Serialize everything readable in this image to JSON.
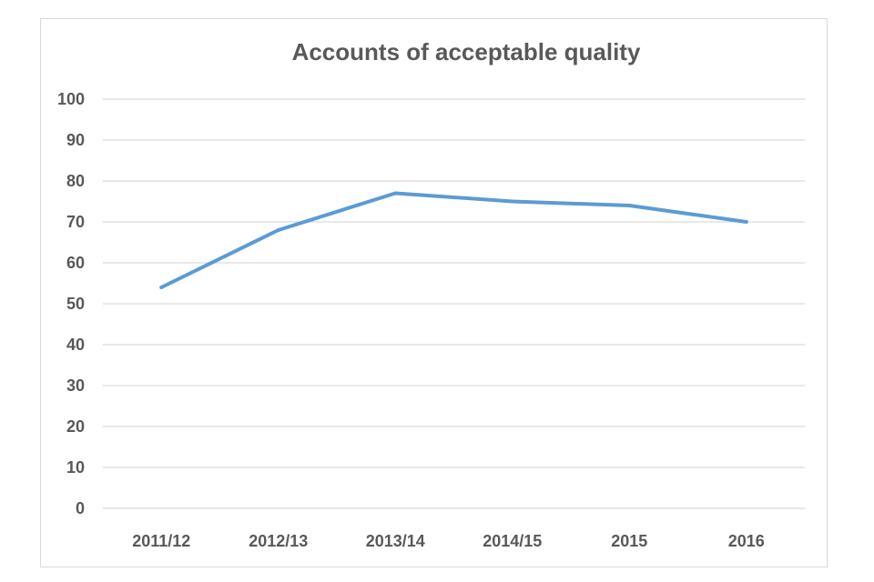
{
  "chart_data": {
    "type": "line",
    "title": "Accounts of acceptable quality",
    "xlabel": "",
    "ylabel": "",
    "categories": [
      "2011/12",
      "2012/13",
      "2013/14",
      "2014/15",
      "2015",
      "2016"
    ],
    "series": [
      {
        "values": [
          54,
          68,
          77,
          75,
          74,
          70
        ],
        "color": "#5b9bd5"
      }
    ],
    "ylim": [
      0,
      100
    ],
    "yticks": [
      0,
      10,
      20,
      30,
      40,
      50,
      60,
      70,
      80,
      90,
      100
    ],
    "grid": true,
    "legend": "none"
  }
}
